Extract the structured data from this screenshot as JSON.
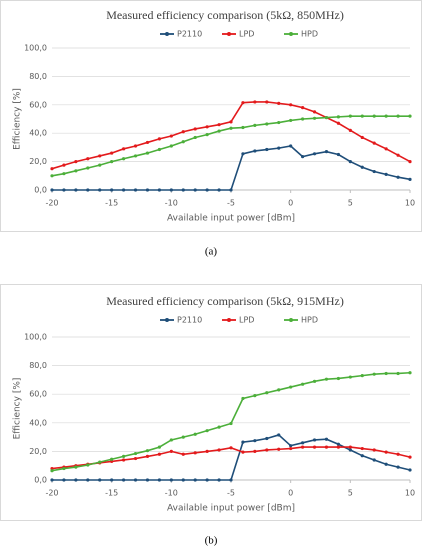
{
  "chart_data": [
    {
      "type": "line",
      "title": "Measured efficiency comparison (5kΩ, 850MHz)",
      "xlabel": "Available input power [dBm]",
      "ylabel": "Efficiency [%]",
      "caption": "(a)",
      "x": [
        -20,
        -19,
        -18,
        -17,
        -16,
        -15,
        -14,
        -13,
        -12,
        -11,
        -10,
        -9,
        -8,
        -7,
        -6,
        -5,
        -4,
        -3,
        -2,
        -1,
        0,
        1,
        2,
        3,
        4,
        5,
        6,
        7,
        8,
        9,
        10
      ],
      "series": [
        {
          "name": "P2110",
          "color": "#1f4e79",
          "values": [
            0,
            0,
            0,
            0,
            0,
            0,
            0,
            0,
            0,
            0,
            0,
            0,
            0,
            0,
            0,
            0,
            25.5,
            27.5,
            28.5,
            29.5,
            31,
            23.5,
            25.5,
            27,
            25,
            20,
            16,
            13,
            11,
            9,
            7.5
          ]
        },
        {
          "name": "LPD",
          "color": "#e31a1c",
          "values": [
            15,
            17.5,
            20,
            22,
            24,
            26,
            29,
            31,
            33.5,
            36,
            38,
            41,
            43,
            44.5,
            46,
            48,
            61.5,
            62,
            62,
            61,
            60,
            58,
            55,
            51,
            47,
            42,
            37,
            33,
            29,
            24.5,
            20
          ]
        },
        {
          "name": "HPD",
          "color": "#4caf3a",
          "values": [
            10,
            11.5,
            13.5,
            15.5,
            17.5,
            20,
            22,
            24,
            26,
            28.5,
            31,
            34,
            37,
            39,
            41.5,
            43.5,
            44,
            45.5,
            46.5,
            47.5,
            49,
            50,
            50.5,
            51,
            51.5,
            52,
            52,
            52,
            52,
            52,
            52
          ]
        }
      ],
      "xlim": [
        -20,
        10
      ],
      "xticks": [
        -20,
        -15,
        -10,
        -5,
        0,
        5,
        10
      ],
      "ylim": [
        0,
        100
      ],
      "yticks": [
        {
          "value": 0,
          "label": "0,0"
        },
        {
          "value": 20,
          "label": "20,0"
        },
        {
          "value": 40,
          "label": "40,0"
        },
        {
          "value": 60,
          "label": "60,0"
        },
        {
          "value": 80,
          "label": "80,0"
        },
        {
          "value": 100,
          "label": "100,0"
        }
      ],
      "grid": true,
      "legend": "top"
    },
    {
      "type": "line",
      "title": "Measured efficiency comparison (5kΩ, 915MHz)",
      "xlabel": "Available input power [dBm]",
      "ylabel": "Efficiency [%]",
      "caption": "(b)",
      "x": [
        -20,
        -19,
        -18,
        -17,
        -16,
        -15,
        -14,
        -13,
        -12,
        -11,
        -10,
        -9,
        -8,
        -7,
        -6,
        -5,
        -4,
        -3,
        -2,
        -1,
        0,
        1,
        2,
        3,
        4,
        5,
        6,
        7,
        8,
        9,
        10
      ],
      "series": [
        {
          "name": "P2110",
          "color": "#1f4e79",
          "values": [
            0,
            0,
            0,
            0,
            0,
            0,
            0,
            0,
            0,
            0,
            0,
            0,
            0,
            0,
            0,
            0,
            26.5,
            27.5,
            29,
            31.5,
            24,
            26,
            28,
            28.5,
            25,
            21,
            17,
            14,
            11,
            9,
            7
          ]
        },
        {
          "name": "LPD",
          "color": "#e31a1c",
          "values": [
            8,
            9,
            10,
            11,
            12,
            13,
            14,
            15,
            16.5,
            18,
            20,
            18,
            19,
            20,
            21,
            22.5,
            19.5,
            20,
            21,
            21.5,
            22,
            23,
            23,
            23,
            23,
            23,
            22,
            21,
            19.5,
            18,
            16
          ]
        },
        {
          "name": "HPD",
          "color": "#4caf3a",
          "values": [
            6.5,
            8,
            9,
            10.5,
            12.5,
            14.5,
            16.5,
            18.5,
            20.5,
            23,
            28,
            30,
            32,
            34.5,
            37,
            39.5,
            57,
            59,
            61,
            63,
            65,
            67,
            69,
            70.5,
            71,
            72,
            73,
            74,
            74.5,
            74.5,
            75
          ]
        }
      ],
      "xlim": [
        -20,
        10
      ],
      "xticks": [
        -20,
        -15,
        -10,
        -5,
        0,
        5,
        10
      ],
      "ylim": [
        0,
        100
      ],
      "yticks": [
        {
          "value": 0,
          "label": "0,0"
        },
        {
          "value": 20,
          "label": "20,0"
        },
        {
          "value": 40,
          "label": "40,0"
        },
        {
          "value": 60,
          "label": "60,0"
        },
        {
          "value": 80,
          "label": "80,0"
        },
        {
          "value": 100,
          "label": "100,0"
        }
      ],
      "grid": true,
      "legend": "top"
    }
  ]
}
